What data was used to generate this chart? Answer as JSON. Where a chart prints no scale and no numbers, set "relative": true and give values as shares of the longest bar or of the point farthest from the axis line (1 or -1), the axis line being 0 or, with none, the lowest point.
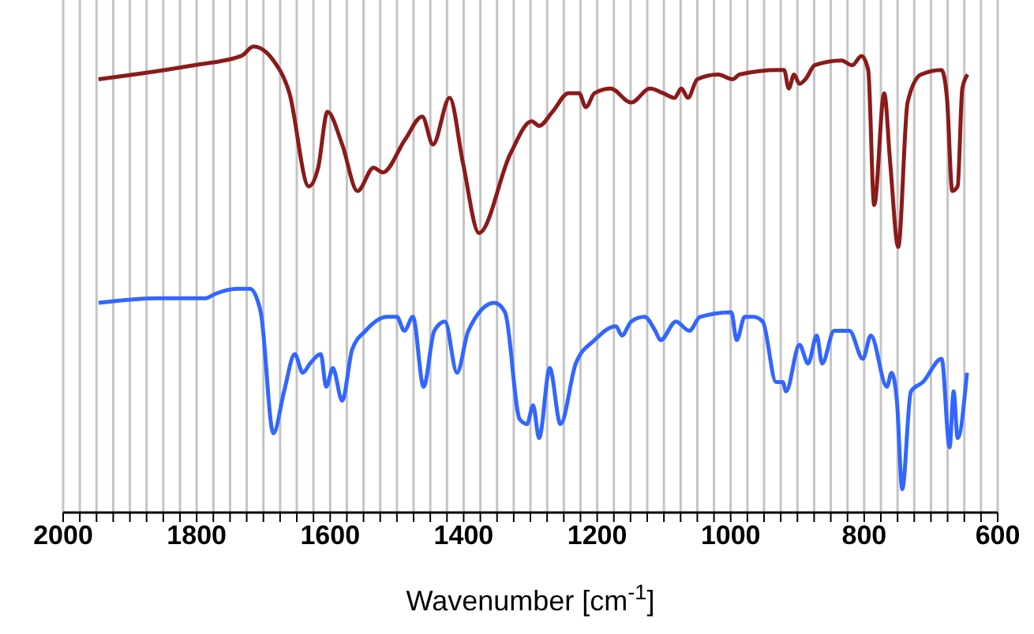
{
  "chart_data": {
    "type": "line",
    "relative": true,
    "xlabel": "Wavenumber [cm$^{-1}$]",
    "xlim": [
      2000,
      600
    ],
    "xticks": [
      2000,
      {
        "value": 1975,
        "label": null
      },
      {
        "value": 1950,
        "label": null
      },
      {
        "value": 1925,
        "label": null
      },
      {
        "value": 1900,
        "label": null
      },
      {
        "value": 1875,
        "label": null
      },
      {
        "value": 1850,
        "label": null
      },
      {
        "value": 1825,
        "label": null
      },
      1800,
      {
        "value": 1775,
        "label": null
      },
      {
        "value": 1750,
        "label": null
      },
      {
        "value": 1725,
        "label": null
      },
      {
        "value": 1700,
        "label": null
      },
      {
        "value": 1675,
        "label": null
      },
      {
        "value": 1650,
        "label": null
      },
      {
        "value": 1625,
        "label": null
      },
      1600,
      {
        "value": 1575,
        "label": null
      },
      {
        "value": 1550,
        "label": null
      },
      {
        "value": 1525,
        "label": null
      },
      {
        "value": 1500,
        "label": null
      },
      {
        "value": 1475,
        "label": null
      },
      {
        "value": 1450,
        "label": null
      },
      {
        "value": 1425,
        "label": null
      },
      1400,
      {
        "value": 1375,
        "label": null
      },
      {
        "value": 1350,
        "label": null
      },
      {
        "value": 1325,
        "label": null
      },
      {
        "value": 1300,
        "label": null
      },
      {
        "value": 1275,
        "label": null
      },
      {
        "value": 1250,
        "label": null
      },
      {
        "value": 1225,
        "label": null
      },
      1200,
      {
        "value": 1175,
        "label": null
      },
      {
        "value": 1150,
        "label": null
      },
      {
        "value": 1125,
        "label": null
      },
      {
        "value": 1100,
        "label": null
      },
      {
        "value": 1075,
        "label": null
      },
      {
        "value": 1050,
        "label": null
      },
      {
        "value": 1025,
        "label": null
      },
      1000,
      {
        "value": 975,
        "label": null
      },
      {
        "value": 950,
        "label": null
      },
      {
        "value": 925,
        "label": null
      },
      {
        "value": 900,
        "label": null
      },
      {
        "value": 875,
        "label": null
      },
      {
        "value": 850,
        "label": null
      },
      {
        "value": 825,
        "label": null
      },
      800,
      {
        "value": 775,
        "label": null
      },
      {
        "value": 750,
        "label": null
      },
      {
        "value": 725,
        "label": null
      },
      {
        "value": 700,
        "label": null
      },
      {
        "value": 675,
        "label": null
      },
      {
        "value": 650,
        "label": null
      },
      {
        "value": 625,
        "label": null
      },
      600
    ],
    "grid": "x",
    "marker": "none",
    "line_style": "solid",
    "series": [
      {
        "color": "#8b1a1a",
        "x": [
          1947,
          1804,
          1733,
          1715,
          1685,
          1661,
          1632,
          1618,
          1604,
          1582,
          1559,
          1535,
          1521,
          1488,
          1462,
          1446,
          1421,
          1401,
          1377,
          1330,
          1298,
          1287,
          1267,
          1243,
          1227,
          1217,
          1204,
          1180,
          1149,
          1121,
          1101,
          1084,
          1074,
          1064,
          1050,
          1019,
          997,
          987,
          928,
          920,
          913,
          905,
          897,
          888,
          874,
          834,
          818,
          804,
          794,
          785,
          770,
          761,
          749,
          735,
          715,
          684,
          676,
          668,
          660,
          653,
          645
        ],
        "values": [
          0.93,
          0.96,
          0.98,
          1.0,
          0.97,
          0.9,
          0.7,
          0.74,
          0.86,
          0.79,
          0.69,
          0.74,
          0.73,
          0.8,
          0.85,
          0.79,
          0.89,
          0.75,
          0.6,
          0.77,
          0.84,
          0.83,
          0.86,
          0.9,
          0.9,
          0.87,
          0.9,
          0.91,
          0.88,
          0.91,
          0.9,
          0.89,
          0.91,
          0.89,
          0.93,
          0.94,
          0.93,
          0.94,
          0.95,
          0.95,
          0.91,
          0.94,
          0.92,
          0.93,
          0.96,
          0.97,
          0.96,
          0.98,
          0.95,
          0.66,
          0.9,
          0.75,
          0.57,
          0.88,
          0.94,
          0.95,
          0.89,
          0.69,
          0.7,
          0.91,
          0.94
        ]
      },
      {
        "color": "#3366ff",
        "x": [
          1947,
          1858,
          1787,
          1771,
          1740,
          1720,
          1704,
          1685,
          1669,
          1653,
          1641,
          1630,
          1614,
          1606,
          1596,
          1582,
          1567,
          1547,
          1515,
          1500,
          1489,
          1476,
          1460,
          1444,
          1428,
          1410,
          1393,
          1354,
          1338,
          1316,
          1305,
          1296,
          1287,
          1271,
          1255,
          1232,
          1204,
          1172,
          1163,
          1149,
          1129,
          1113,
          1105,
          1082,
          1062,
          1046,
          999,
          991,
          979,
          966,
          952,
          932,
          922,
          917,
          897,
          884,
          871,
          863,
          845,
          822,
          802,
          790,
          766,
          759,
          751,
          743,
          730,
          712,
          684,
          672,
          666,
          660,
          646
        ],
        "values": [
          0.45,
          0.46,
          0.46,
          0.47,
          0.48,
          0.48,
          0.43,
          0.17,
          0.26,
          0.34,
          0.3,
          0.32,
          0.34,
          0.27,
          0.31,
          0.24,
          0.35,
          0.39,
          0.42,
          0.42,
          0.39,
          0.42,
          0.27,
          0.39,
          0.41,
          0.3,
          0.39,
          0.45,
          0.43,
          0.2,
          0.19,
          0.23,
          0.16,
          0.31,
          0.19,
          0.32,
          0.37,
          0.4,
          0.38,
          0.41,
          0.42,
          0.39,
          0.37,
          0.41,
          0.39,
          0.42,
          0.43,
          0.37,
          0.42,
          0.42,
          0.41,
          0.28,
          0.28,
          0.26,
          0.36,
          0.32,
          0.38,
          0.32,
          0.39,
          0.39,
          0.33,
          0.38,
          0.27,
          0.3,
          0.24,
          0.05,
          0.26,
          0.28,
          0.33,
          0.14,
          0.26,
          0.16,
          0.3
        ]
      }
    ]
  }
}
